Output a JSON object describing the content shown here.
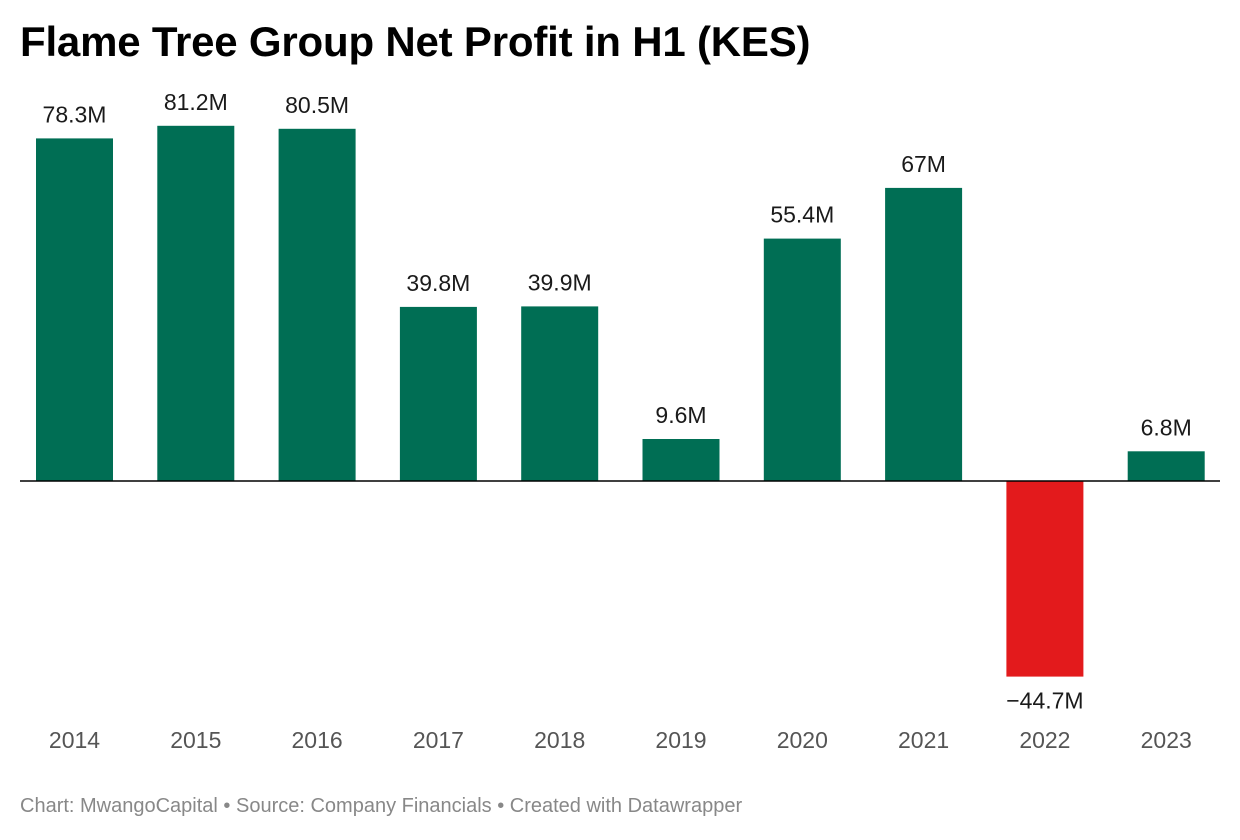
{
  "chart_data": {
    "type": "bar",
    "title": "Flame Tree Group Net Profit in H1 (KES)",
    "categories": [
      "2014",
      "2015",
      "2016",
      "2017",
      "2018",
      "2019",
      "2020",
      "2021",
      "2022",
      "2023"
    ],
    "values": [
      78.3,
      81.2,
      80.5,
      39.8,
      39.9,
      9.6,
      55.4,
      67,
      -44.7,
      6.8
    ],
    "value_labels": [
      "78.3M",
      "81.2M",
      "80.5M",
      "39.8M",
      "39.9M",
      "9.6M",
      "55.4M",
      "67M",
      "−44.7M",
      "6.8M"
    ],
    "unit": "M KES",
    "ylim": [
      -44.7,
      81.2
    ],
    "grid": false,
    "colors": {
      "positive": "#006e54",
      "negative": "#e31a1c",
      "baseline": "#000000"
    }
  },
  "footer": {
    "text": "Chart: MwangoCapital • Source: Company Financials • Created with Datawrapper"
  }
}
